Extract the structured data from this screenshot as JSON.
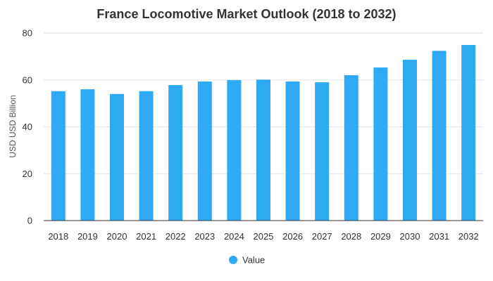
{
  "chart_data": {
    "type": "bar",
    "title": "France Locomotive Market Outlook (2018 to 2032)",
    "xlabel": "",
    "ylabel": "USD USD Billion",
    "categories": [
      "2018",
      "2019",
      "2020",
      "2021",
      "2022",
      "2023",
      "2024",
      "2025",
      "2026",
      "2027",
      "2028",
      "2029",
      "2030",
      "2031",
      "2032"
    ],
    "series": [
      {
        "name": "Value",
        "color": "#2eaaf5",
        "values": [
          55.2,
          56.0,
          54.0,
          55.2,
          57.8,
          59.3,
          59.9,
          60.1,
          59.3,
          59.0,
          62.0,
          65.3,
          68.6,
          72.4,
          74.9
        ]
      }
    ],
    "ylim": [
      0,
      80
    ],
    "yticks": [
      0,
      20,
      40,
      60,
      80
    ],
    "grid": true,
    "legend_position": "bottom-center"
  }
}
